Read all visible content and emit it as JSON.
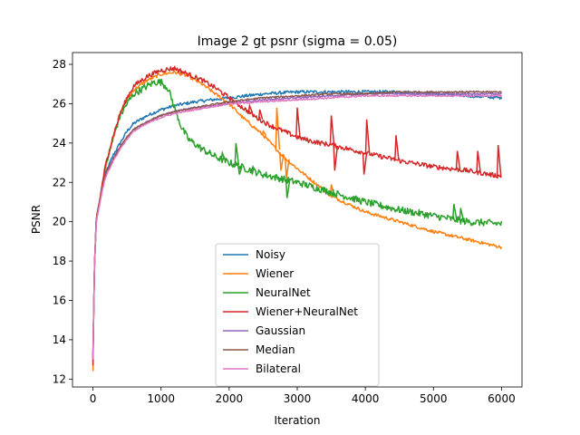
{
  "chart_data": {
    "type": "line",
    "title": "Image 2 gt psnr (sigma = 0.05)",
    "xlabel": "Iteration",
    "ylabel": "PSNR",
    "xlim": [
      -300,
      6300
    ],
    "ylim": [
      11.6,
      28.6
    ],
    "xticks": [
      0,
      1000,
      2000,
      3000,
      4000,
      5000,
      6000
    ],
    "yticks": [
      12,
      14,
      16,
      18,
      20,
      22,
      24,
      26,
      28
    ],
    "grid": false,
    "legend_position": "lower-center",
    "series": [
      {
        "name": "Noisy",
        "color": "#1f77b4",
        "x": [
          0,
          20,
          50,
          100,
          150,
          200,
          300,
          400,
          500,
          600,
          800,
          1000,
          1200,
          1500,
          2000,
          2500,
          3000,
          3500,
          4000,
          4500,
          5000,
          5500,
          6000
        ],
        "y": [
          13.0,
          17.5,
          20.2,
          21.0,
          22.0,
          22.6,
          23.4,
          24.0,
          24.6,
          25.0,
          25.4,
          25.7,
          25.9,
          26.1,
          26.3,
          26.5,
          26.6,
          26.6,
          26.6,
          26.6,
          26.5,
          26.4,
          26.3
        ],
        "noise": 0.08
      },
      {
        "name": "Wiener",
        "color": "#ff7f0e",
        "x": [
          0,
          20,
          50,
          100,
          150,
          200,
          300,
          400,
          500,
          600,
          800,
          1000,
          1200,
          1400,
          1600,
          1800,
          2000,
          2200,
          2500,
          2800,
          3000,
          3500,
          4000,
          4500,
          5000,
          5500,
          6000
        ],
        "y": [
          12.4,
          17.5,
          20.2,
          21.1,
          22.2,
          23.0,
          24.3,
          25.5,
          26.2,
          26.7,
          27.2,
          27.5,
          27.6,
          27.4,
          27.0,
          26.5,
          26.0,
          25.3,
          24.4,
          23.3,
          22.7,
          21.3,
          20.5,
          20.0,
          19.5,
          19.1,
          18.7
        ],
        "noise": 0.08
      },
      {
        "name": "NeuralNet",
        "color": "#2ca02c",
        "x": [
          0,
          20,
          50,
          100,
          150,
          200,
          300,
          400,
          500,
          600,
          800,
          900,
          1000,
          1100,
          1200,
          1300,
          1400,
          1600,
          1800,
          2000,
          2500,
          3000,
          3500,
          4000,
          4500,
          5000,
          5500,
          6000
        ],
        "y": [
          12.9,
          17.5,
          20.2,
          21.1,
          22.2,
          23.0,
          24.3,
          25.4,
          26.0,
          26.5,
          26.9,
          27.1,
          27.1,
          26.8,
          25.8,
          24.8,
          24.2,
          23.7,
          23.3,
          23.0,
          22.4,
          22.0,
          21.5,
          21.0,
          20.6,
          20.3,
          20.0,
          19.9
        ],
        "noise": 0.18
      },
      {
        "name": "Wiener+NeuralNet",
        "color": "#d62728",
        "x": [
          0,
          20,
          50,
          100,
          150,
          200,
          300,
          400,
          500,
          600,
          800,
          1000,
          1200,
          1400,
          1600,
          1800,
          2000,
          2200,
          2400,
          2600,
          2800,
          3000,
          3200,
          3500,
          4000,
          4500,
          5000,
          5500,
          6000
        ],
        "y": [
          12.7,
          17.5,
          20.2,
          21.1,
          22.2,
          23.1,
          24.4,
          25.5,
          26.3,
          26.9,
          27.4,
          27.7,
          27.8,
          27.5,
          27.2,
          26.8,
          26.3,
          25.8,
          25.3,
          24.9,
          24.6,
          24.3,
          24.1,
          23.9,
          23.5,
          23.1,
          22.8,
          22.6,
          22.3
        ],
        "noise": 0.12
      },
      {
        "name": "Gaussian",
        "color": "#9467bd",
        "x": [
          0,
          20,
          50,
          100,
          150,
          200,
          300,
          400,
          500,
          600,
          800,
          1000,
          1200,
          1500,
          2000,
          2500,
          3000,
          3500,
          4000,
          4500,
          5000,
          5500,
          6000
        ],
        "y": [
          13.2,
          17.5,
          20.1,
          21.0,
          21.9,
          22.5,
          23.2,
          23.8,
          24.3,
          24.7,
          25.1,
          25.4,
          25.6,
          25.8,
          26.0,
          26.2,
          26.3,
          26.4,
          26.5,
          26.5,
          26.5,
          26.5,
          26.5
        ],
        "noise": 0.04
      },
      {
        "name": "Median",
        "color": "#8c564b",
        "x": [
          0,
          20,
          50,
          100,
          150,
          200,
          300,
          400,
          500,
          600,
          800,
          1000,
          1200,
          1500,
          2000,
          2500,
          3000,
          3500,
          4000,
          4500,
          5000,
          5500,
          6000
        ],
        "y": [
          13.1,
          17.5,
          20.1,
          21.0,
          21.9,
          22.5,
          23.2,
          23.8,
          24.3,
          24.7,
          25.1,
          25.4,
          25.6,
          25.8,
          26.1,
          26.3,
          26.4,
          26.5,
          26.5,
          26.6,
          26.6,
          26.6,
          26.6
        ],
        "noise": 0.04
      },
      {
        "name": "Bilateral",
        "color": "#e377c2",
        "x": [
          0,
          20,
          50,
          100,
          150,
          200,
          300,
          400,
          500,
          600,
          800,
          1000,
          1200,
          1500,
          2000,
          2500,
          3000,
          3500,
          4000,
          4500,
          5000,
          5500,
          6000
        ],
        "y": [
          13.0,
          17.5,
          20.0,
          20.9,
          21.8,
          22.4,
          23.1,
          23.7,
          24.2,
          24.6,
          25.0,
          25.3,
          25.5,
          25.7,
          26.0,
          26.1,
          26.2,
          26.3,
          26.4,
          26.4,
          26.4,
          26.4,
          26.4
        ],
        "noise": 0.04
      }
    ],
    "spikes": [
      {
        "series": "Wiener",
        "x": [
          2500,
          2700,
          2760,
          2840,
          3500
        ],
        "y": [
          24.6,
          25.8,
          22.6,
          22.2,
          21.9
        ]
      },
      {
        "series": "NeuralNet",
        "x": [
          1700,
          1900,
          2100,
          2150,
          2350,
          2850,
          5300,
          5400
        ],
        "y": [
          23.5,
          23.5,
          24.0,
          22.4,
          22.8,
          21.2,
          20.9,
          20.7
        ]
      },
      {
        "series": "Wiener+NeuralNet",
        "x": [
          2300,
          2450,
          3000,
          3500,
          3550,
          3980,
          4020,
          4450,
          5350,
          5650,
          5950
        ],
        "y": [
          25.9,
          25.7,
          25.8,
          25.4,
          22.6,
          22.4,
          25.2,
          24.4,
          23.6,
          23.6,
          23.9
        ]
      }
    ]
  }
}
